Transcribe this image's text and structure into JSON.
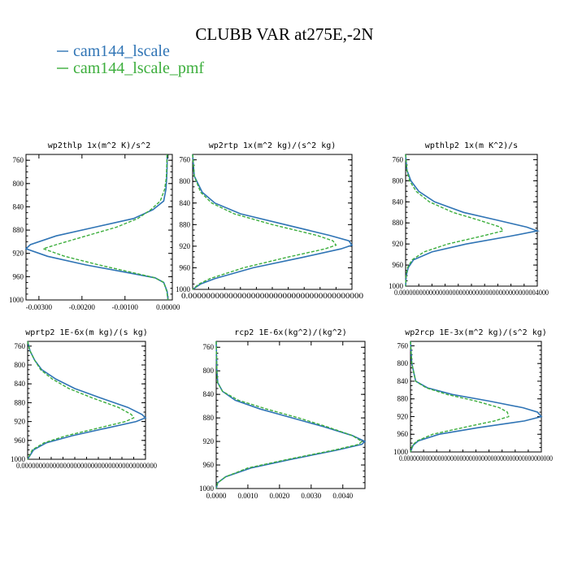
{
  "figure_title": "CLUBB VAR at275E,-2N",
  "colors": {
    "cam144_lscale": "#2f74b5",
    "cam144_lscale_pmf": "#3cae3c"
  },
  "legend": [
    {
      "label": "cam144_lscale",
      "color": "#2f74b5",
      "style": "solid"
    },
    {
      "label": "cam144_lscale_pmf",
      "color": "#3cae3c",
      "style": "dashed"
    }
  ],
  "chart_data": [
    {
      "type": "line",
      "title": "wp2thlp  1x(m^2 K)/s^2",
      "xlabel": "",
      "ylabel": "",
      "xlim": [
        -0.0033,
        0.0001
      ],
      "ylim": [
        1000,
        750
      ],
      "yticks": [
        760,
        800,
        840,
        880,
        920,
        960,
        1000
      ],
      "xtick_labels": [
        {
          "v": -0.003,
          "label": "-0.00300"
        },
        {
          "v": -0.002,
          "label": "-0.00200"
        },
        {
          "v": -0.001,
          "label": "-0.00100"
        },
        {
          "v": 0.0,
          "label": "0.00000"
        }
      ],
      "series": [
        {
          "name": "cam144_lscale",
          "y": [
            750,
            770,
            790,
            810,
            830,
            845,
            860,
            875,
            890,
            905,
            912,
            925,
            940,
            955,
            962,
            970,
            985,
            1000
          ],
          "x": [
            -2e-05,
            -2e-05,
            -3e-05,
            -5e-05,
            -0.0001,
            -0.00035,
            -0.0008,
            -0.0017,
            -0.0026,
            -0.0032,
            -0.0033,
            -0.0028,
            -0.0019,
            -0.0008,
            -0.0003,
            -0.0001,
            -2e-05,
            0.0
          ]
        },
        {
          "name": "cam144_lscale_pmf",
          "y": [
            750,
            770,
            790,
            810,
            830,
            845,
            860,
            875,
            890,
            905,
            912,
            925,
            940,
            955,
            962,
            970,
            985,
            1000
          ],
          "x": [
            -2e-05,
            -3e-05,
            -4e-05,
            -8e-05,
            -0.00018,
            -0.0004,
            -0.0007,
            -0.0012,
            -0.0019,
            -0.0026,
            -0.0029,
            -0.0024,
            -0.0016,
            -0.0007,
            -0.0003,
            -0.0001,
            -3e-05,
            0.0
          ]
        }
      ]
    },
    {
      "type": "line",
      "title": "wp2rtp  1x(m^2 kg)/(s^2 kg)",
      "xlabel": "",
      "ylabel": "",
      "xlim": [
        0,
        1
      ],
      "ylim": [
        1000,
        750
      ],
      "yticks": [
        760,
        800,
        840,
        880,
        920,
        960,
        1000
      ],
      "x_axis_text": "0.000000000000000000000000000000000000000",
      "series": [
        {
          "name": "cam144_lscale",
          "y": [
            750,
            790,
            820,
            840,
            860,
            880,
            900,
            910,
            918,
            925,
            940,
            960,
            980,
            990,
            1000
          ],
          "x": [
            0.0,
            0.01,
            0.06,
            0.14,
            0.3,
            0.58,
            0.86,
            0.98,
            1.0,
            0.93,
            0.7,
            0.38,
            0.14,
            0.05,
            0.0
          ]
        },
        {
          "name": "cam144_lscale_pmf",
          "y": [
            750,
            790,
            820,
            840,
            860,
            880,
            900,
            910,
            918,
            925,
            940,
            960,
            980,
            990,
            1000
          ],
          "x": [
            0.0,
            0.01,
            0.05,
            0.12,
            0.26,
            0.5,
            0.78,
            0.88,
            0.9,
            0.83,
            0.6,
            0.32,
            0.11,
            0.04,
            0.0
          ]
        }
      ]
    },
    {
      "type": "line",
      "title": "wpthlp2  1x(m K^2)/s",
      "xlabel": "",
      "ylabel": "",
      "xlim": [
        0,
        1
      ],
      "ylim": [
        1000,
        750
      ],
      "yticks": [
        760,
        800,
        840,
        880,
        920,
        960,
        1000
      ],
      "x_axis_text": "0.000000000000000000000000000000000000000004000",
      "series": [
        {
          "name": "cam144_lscale",
          "y": [
            750,
            780,
            800,
            820,
            840,
            860,
            875,
            888,
            895,
            905,
            920,
            935,
            950,
            965,
            980,
            1000
          ],
          "x": [
            0.0,
            0.01,
            0.04,
            0.1,
            0.22,
            0.44,
            0.7,
            0.92,
            1.0,
            0.8,
            0.46,
            0.2,
            0.06,
            0.02,
            0.005,
            0.0
          ]
        },
        {
          "name": "cam144_lscale_pmf",
          "y": [
            750,
            780,
            800,
            820,
            840,
            860,
            875,
            888,
            895,
            905,
            920,
            935,
            950,
            965,
            980,
            1000
          ],
          "x": [
            0.0,
            0.01,
            0.03,
            0.08,
            0.18,
            0.36,
            0.56,
            0.72,
            0.74,
            0.58,
            0.32,
            0.14,
            0.05,
            0.015,
            0.004,
            0.0
          ]
        }
      ]
    },
    {
      "type": "line",
      "title": "wprtp2  1E-6x(m kg)/(s kg)",
      "xlabel": "",
      "ylabel": "",
      "xlim": [
        0,
        1
      ],
      "ylim": [
        1000,
        750
      ],
      "yticks": [
        760,
        800,
        840,
        880,
        920,
        960,
        1000
      ],
      "x_axis_text": "0.000000000000000000000000000000000000000",
      "series": [
        {
          "name": "cam144_lscale",
          "y": [
            750,
            770,
            790,
            810,
            830,
            850,
            870,
            890,
            905,
            912,
            920,
            935,
            950,
            965,
            980,
            1000
          ],
          "x": [
            0.0,
            0.02,
            0.06,
            0.12,
            0.24,
            0.4,
            0.62,
            0.85,
            0.97,
            1.0,
            0.92,
            0.65,
            0.38,
            0.16,
            0.05,
            0.0
          ]
        },
        {
          "name": "cam144_lscale_pmf",
          "y": [
            750,
            770,
            790,
            810,
            830,
            850,
            870,
            890,
            905,
            912,
            920,
            935,
            950,
            965,
            980,
            1000
          ],
          "x": [
            0.0,
            0.02,
            0.06,
            0.11,
            0.21,
            0.35,
            0.55,
            0.77,
            0.88,
            0.9,
            0.83,
            0.58,
            0.33,
            0.14,
            0.04,
            0.0
          ]
        }
      ]
    },
    {
      "type": "line",
      "title": "rcp2  1E-6x(kg^2)/(kg^2)",
      "xlabel": "",
      "ylabel": "",
      "xlim": [
        0,
        0.0047
      ],
      "ylim": [
        1000,
        750
      ],
      "yticks": [
        760,
        800,
        840,
        880,
        920,
        960,
        1000
      ],
      "xtick_labels": [
        {
          "v": 0.0,
          "label": "0.0000"
        },
        {
          "v": 0.001,
          "label": "0.0010"
        },
        {
          "v": 0.002,
          "label": "0.0020"
        },
        {
          "v": 0.003,
          "label": "0.0030"
        },
        {
          "v": 0.004,
          "label": "0.0040"
        }
      ],
      "series": [
        {
          "name": "cam144_lscale",
          "y": [
            750,
            800,
            820,
            835,
            850,
            865,
            880,
            895,
            910,
            920,
            925,
            935,
            950,
            965,
            980,
            990,
            1000
          ],
          "x": [
            0.0,
            2e-05,
            5e-05,
            0.0002,
            0.0006,
            0.0014,
            0.0024,
            0.0034,
            0.0043,
            0.0047,
            0.0046,
            0.0038,
            0.0024,
            0.0011,
            0.0003,
            5e-05,
            0.0
          ]
        },
        {
          "name": "cam144_lscale_pmf",
          "y": [
            750,
            800,
            820,
            835,
            850,
            865,
            880,
            895,
            910,
            920,
            925,
            935,
            950,
            965,
            980,
            990,
            1000
          ],
          "x": [
            0.0,
            2e-05,
            4e-05,
            0.0002,
            0.0007,
            0.0016,
            0.0026,
            0.0035,
            0.0043,
            0.0046,
            0.0045,
            0.0037,
            0.0023,
            0.001,
            0.0003,
            5e-05,
            0.0
          ]
        }
      ]
    },
    {
      "type": "line",
      "title": "wp2rcp  1E-3x(m^2 kg)/(s^2 kg)",
      "xlabel": "",
      "ylabel": "",
      "xlim": [
        0,
        1
      ],
      "ylim": [
        1000,
        750
      ],
      "yticks": [
        760,
        800,
        840,
        880,
        920,
        960,
        1000
      ],
      "x_axis_text": "0.000000000000000000000000000000000000000000000000",
      "series": [
        {
          "name": "cam144_lscale",
          "y": [
            750,
            800,
            840,
            855,
            870,
            885,
            900,
            910,
            920,
            930,
            945,
            960,
            975,
            985,
            1000
          ],
          "x": [
            0.0,
            0.01,
            0.04,
            0.13,
            0.32,
            0.6,
            0.86,
            0.97,
            1.0,
            0.87,
            0.52,
            0.22,
            0.06,
            0.02,
            0.0
          ]
        },
        {
          "name": "cam144_lscale_pmf",
          "y": [
            750,
            800,
            840,
            855,
            870,
            885,
            900,
            910,
            920,
            930,
            945,
            960,
            975,
            985,
            1000
          ],
          "x": [
            0.0,
            0.01,
            0.04,
            0.12,
            0.28,
            0.5,
            0.68,
            0.74,
            0.75,
            0.64,
            0.4,
            0.17,
            0.05,
            0.015,
            0.0
          ]
        }
      ]
    }
  ]
}
